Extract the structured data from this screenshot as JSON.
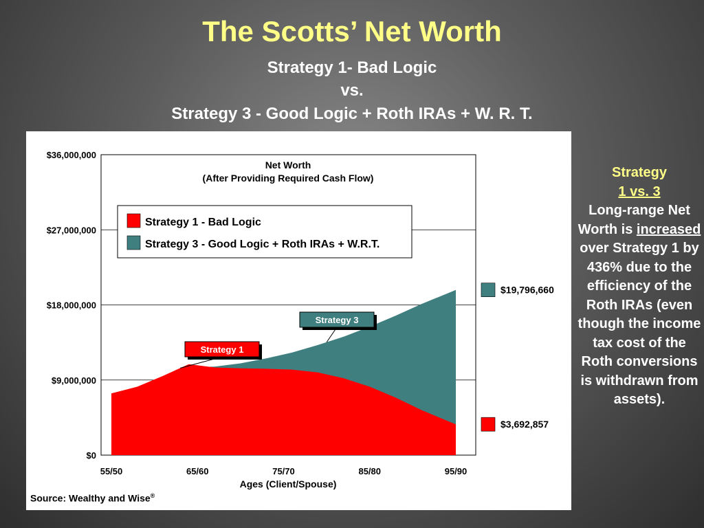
{
  "slide": {
    "title": "The Scotts’ Net Worth",
    "subtitle_line1": "Strategy 1- Bad Logic",
    "subtitle_line2": "vs.",
    "subtitle_line3": "Strategy 3 - Good Logic + Roth IRAs + W. R. T."
  },
  "side_note": {
    "heading_line1": "Strategy",
    "heading_line2": "1 vs. 3",
    "text_part1": "Long-range Net Worth is",
    "text_emphasis": "increased",
    "text_part2": "over Strategy 1 by 436% due to the efficiency of the Roth IRAs (even though the income tax cost of the Roth conversions is withdrawn from assets)."
  },
  "source": {
    "text": "Source:  Wealthy and Wise",
    "mark": "®"
  },
  "colors": {
    "strategy1": "#ff0000",
    "strategy3": "#407f7f",
    "title_yellow": "#ffff88"
  },
  "chart_data": {
    "type": "area",
    "title_line1": "Net Worth",
    "title_line2": "(After Providing Required Cash Flow)",
    "xlabel": "Ages (Client/Spouse)",
    "ylabel": "",
    "x_ticks": [
      "55/50",
      "65/60",
      "75/70",
      "85/80",
      "95/90"
    ],
    "y_ticks": [
      "$0",
      "$9,000,000",
      "$18,000,000",
      "$27,000,000",
      "$36,000,000"
    ],
    "ylim": [
      0,
      36000000
    ],
    "grid": "horizontal",
    "legend_position": "top-left",
    "legend": [
      {
        "label": "Strategy 1 -  Bad Logic",
        "color": "#ff0000"
      },
      {
        "label": "Strategy 3 -  Good Logic + Roth IRAs + W.R.T.",
        "color": "#407f7f"
      }
    ],
    "x_age": [
      55,
      58,
      61,
      64,
      67,
      70,
      73,
      76,
      79,
      82,
      85,
      88,
      91,
      95
    ],
    "series": [
      {
        "name": "Strategy 1",
        "values": [
          7400000,
          8200000,
          9500000,
          10900000,
          10500000,
          10400000,
          10350000,
          10250000,
          9900000,
          9200000,
          8200000,
          6900000,
          5400000,
          3692857
        ]
      },
      {
        "name": "Strategy 3",
        "values": [
          7400000,
          8100000,
          9400000,
          10500000,
          10600000,
          11000000,
          11600000,
          12300000,
          13200000,
          14200000,
          15400000,
          16700000,
          18100000,
          19796660
        ]
      }
    ],
    "callouts": [
      {
        "label": "Strategy 1",
        "series": "Strategy 1",
        "age": 63
      },
      {
        "label": "Strategy 3",
        "series": "Strategy 3",
        "age": 80
      }
    ],
    "end_labels": [
      {
        "label": "$19,796,660",
        "series": "Strategy 3"
      },
      {
        "label": "$3,692,857",
        "series": "Strategy 1"
      }
    ]
  }
}
